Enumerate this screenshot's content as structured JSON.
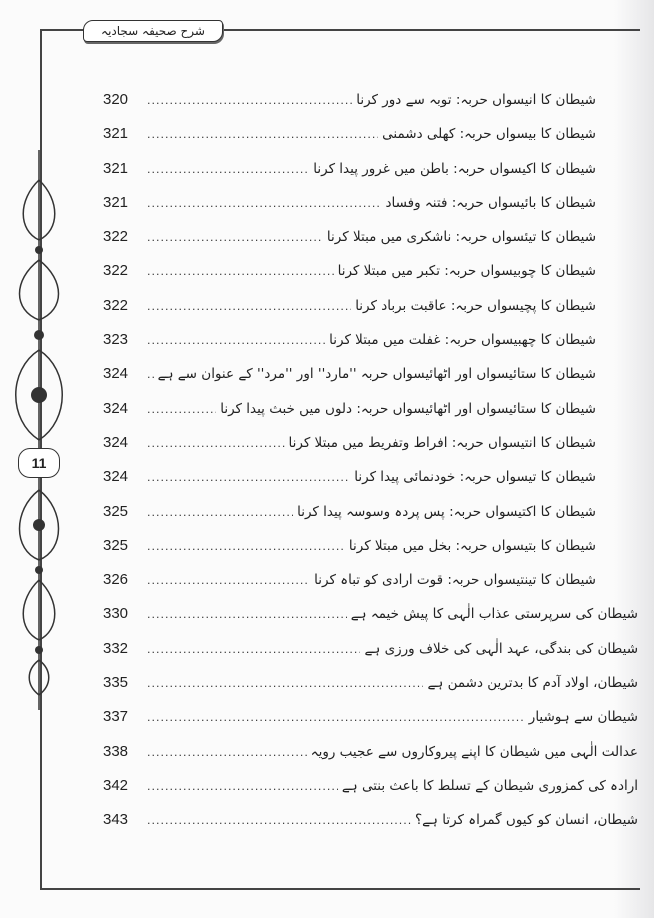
{
  "header": {
    "book_title": "شرح صحیفہ سجادیہ",
    "page_number": "11"
  },
  "toc": [
    {
      "title": "شیطان کا انیسواں حربہ: توبہ سے دور کرنا",
      "page": "320",
      "level": 2
    },
    {
      "title": "شیطان کا بیسواں حربہ: کھلی دشمنی",
      "page": "321",
      "level": 2
    },
    {
      "title": "شیطان کا اکیسواں حربہ: باطن میں غرور پیدا کرنا",
      "page": "321",
      "level": 2
    },
    {
      "title": "شیطان کا بائیسواں حربہ: فتنہ وفساد",
      "page": "321",
      "level": 2
    },
    {
      "title": "شیطان کا تیئسواں حربہ: ناشکری میں مبتلا کرنا",
      "page": "322",
      "level": 2
    },
    {
      "title": "شیطان کا چوبیسواں حربہ: تکبر میں مبتلا کرنا",
      "page": "322",
      "level": 2
    },
    {
      "title": "شیطان کا پچیسواں حربہ: عاقبت برباد کرنا",
      "page": "322",
      "level": 2
    },
    {
      "title": "شیطان کا چھبیسواں حربہ: غفلت میں مبتلا کرنا",
      "page": "323",
      "level": 2
    },
    {
      "title": "شیطان کا ستائیسواں اور اٹھائیسواں حربہ ''مارد'' اور ''مرد'' کے عنوان سے ہے",
      "page": "324",
      "level": 2
    },
    {
      "title": "شیطان کا ستائیسواں اور اٹھائیسواں حربہ: دلوں میں خبث پیدا کرنا",
      "page": "324",
      "level": 2
    },
    {
      "title": "شیطان کا انتیسواں حربہ: افراط وتفریط میں مبتلا کرنا",
      "page": "324",
      "level": 2
    },
    {
      "title": "شیطان کا تیسواں حربہ: خودنمائی پیدا کرنا",
      "page": "324",
      "level": 2
    },
    {
      "title": "شیطان کا اکتیسواں حربہ: پس پردہ وسوسہ پیدا کرنا",
      "page": "325",
      "level": 2
    },
    {
      "title": "شیطان کا بتیسواں حربہ: بخل میں مبتلا کرنا",
      "page": "325",
      "level": 2
    },
    {
      "title": "شیطان کا تینتیسواں حربہ: قوت ارادی کو تباہ کرنا",
      "page": "326",
      "level": 2
    },
    {
      "title": "شیطان کی سرپرستی عذاب الٰہی کا پیش خیمہ ہے",
      "page": "330",
      "level": 1
    },
    {
      "title": "شیطان کی بندگی، عہد الٰہی کی خلاف ورزی ہے",
      "page": "332",
      "level": 1
    },
    {
      "title": "شیطان، اولاد آدم کا بدترین دشمن ہے",
      "page": "335",
      "level": 1
    },
    {
      "title": "شیطان سے ہوشیار",
      "page": "337",
      "level": 1
    },
    {
      "title": "عدالت الٰہی میں شیطان کا اپنے پیروکاروں سے عجیب رویہ",
      "page": "338",
      "level": 1
    },
    {
      "title": "ارادہ کی کمزوری شیطان کے تسلط کا باعث بنتی ہے",
      "page": "342",
      "level": 1
    },
    {
      "title": "شیطان، انسان کو کیوں گمراہ کرتا ہے؟",
      "page": "343",
      "level": 1
    }
  ]
}
